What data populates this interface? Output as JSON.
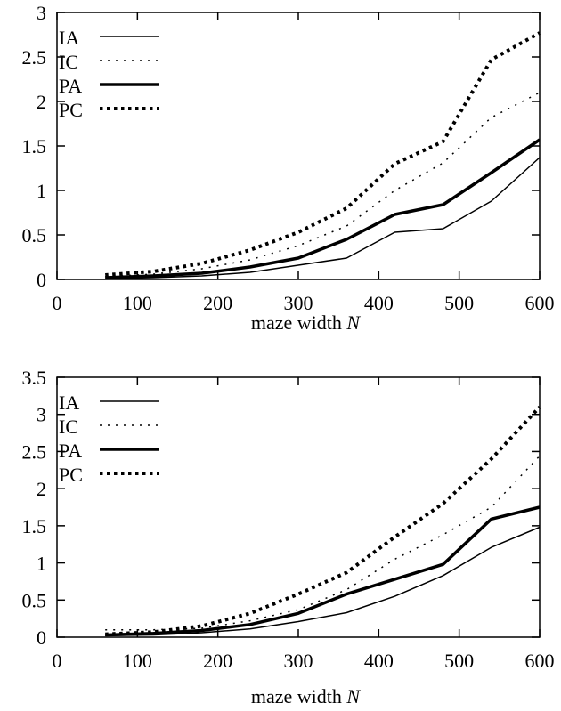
{
  "chart_data": [
    {
      "type": "line",
      "title": "",
      "xlabel": "maze width N",
      "ylabel": "",
      "xlim": [
        0,
        600
      ],
      "ylim": [
        0,
        3
      ],
      "xticks": [
        0,
        100,
        200,
        300,
        400,
        500,
        600
      ],
      "yticks": [
        0,
        0.5,
        1,
        1.5,
        2,
        2.5,
        3
      ],
      "ytick_labels": [
        "0",
        "0.5",
        "1",
        "1.5",
        "2",
        "2.5",
        "3"
      ],
      "grid": false,
      "legend": "top-left",
      "x": [
        60,
        120,
        180,
        240,
        300,
        360,
        420,
        480,
        540,
        600
      ],
      "series": [
        {
          "name": "IA",
          "style": "thin-solid",
          "values": [
            0.01,
            0.02,
            0.04,
            0.08,
            0.16,
            0.24,
            0.53,
            0.57,
            0.88,
            1.37
          ]
        },
        {
          "name": "IC",
          "style": "thin-dotted",
          "values": [
            0.03,
            0.06,
            0.12,
            0.22,
            0.38,
            0.6,
            1.0,
            1.31,
            1.82,
            2.1
          ]
        },
        {
          "name": "PA",
          "style": "thick-solid",
          "values": [
            0.02,
            0.04,
            0.07,
            0.14,
            0.24,
            0.45,
            0.73,
            0.84,
            1.2,
            1.57
          ]
        },
        {
          "name": "PC",
          "style": "thick-dotted",
          "values": [
            0.05,
            0.09,
            0.18,
            0.33,
            0.53,
            0.8,
            1.3,
            1.55,
            2.47,
            2.77
          ]
        }
      ]
    },
    {
      "type": "line",
      "title": "",
      "xlabel": "maze width N",
      "ylabel": "",
      "xlim": [
        0,
        600
      ],
      "ylim": [
        0,
        3.5
      ],
      "xticks": [
        0,
        100,
        200,
        300,
        400,
        500,
        600
      ],
      "yticks": [
        0,
        0.5,
        1,
        1.5,
        2,
        2.5,
        3,
        3.5
      ],
      "ytick_labels": [
        "0",
        "0.5",
        "1",
        "1.5",
        "2",
        "2.5",
        "3",
        "3.5"
      ],
      "grid": false,
      "legend": "top-left",
      "x": [
        60,
        120,
        180,
        240,
        300,
        360,
        420,
        480,
        540,
        600
      ],
      "series": [
        {
          "name": "IA",
          "style": "thin-solid",
          "values": [
            0.02,
            0.03,
            0.06,
            0.11,
            0.21,
            0.33,
            0.55,
            0.83,
            1.21,
            1.48
          ]
        },
        {
          "name": "IC",
          "style": "thin-dotted",
          "values": [
            0.1,
            0.1,
            0.12,
            0.22,
            0.37,
            0.64,
            1.05,
            1.38,
            1.75,
            2.44
          ]
        },
        {
          "name": "PA",
          "style": "thick-solid",
          "values": [
            0.03,
            0.05,
            0.09,
            0.17,
            0.32,
            0.58,
            0.78,
            0.98,
            1.59,
            1.75
          ]
        },
        {
          "name": "PC",
          "style": "thick-dotted",
          "values": [
            0.04,
            0.07,
            0.15,
            0.32,
            0.58,
            0.87,
            1.35,
            1.8,
            2.4,
            3.1
          ]
        }
      ]
    }
  ]
}
